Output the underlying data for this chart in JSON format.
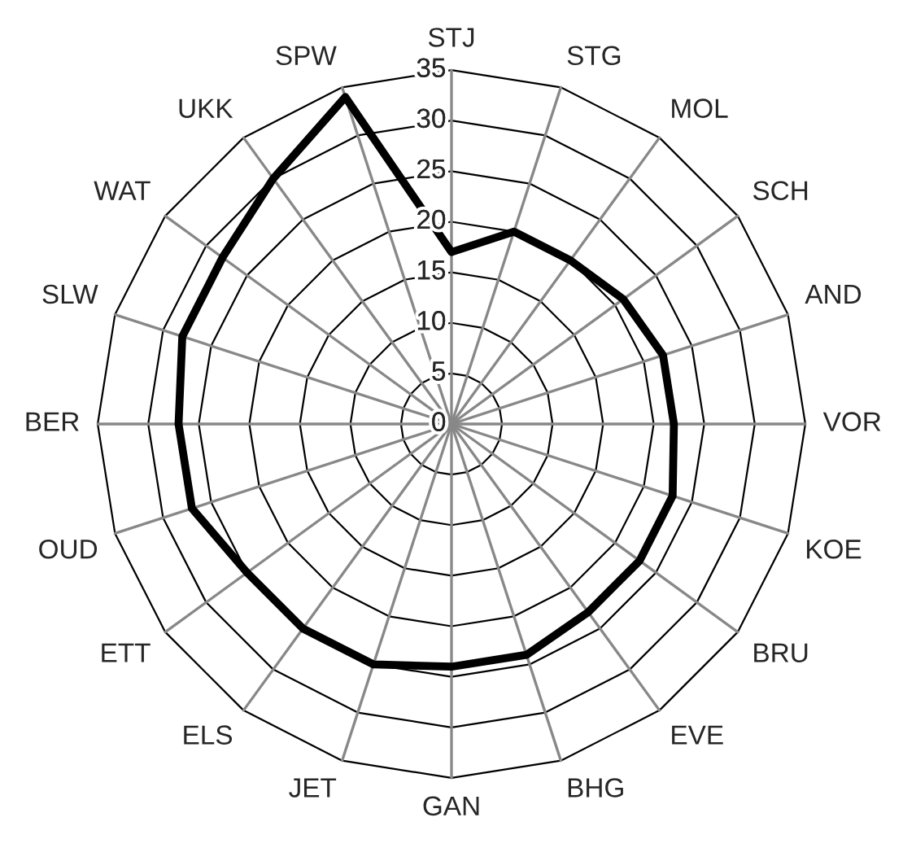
{
  "chart_data": {
    "type": "radar",
    "categories": [
      "STJ",
      "STG",
      "MOL",
      "SCH",
      "AND",
      "VOR",
      "KOE",
      "BRU",
      "EVE",
      "BHG",
      "GAN",
      "JET",
      "ELS",
      "ETT",
      "OUD",
      "BER",
      "SLW",
      "WAT",
      "UKK",
      "SPW"
    ],
    "series": [
      {
        "color": "#000000",
        "values": [
          17,
          20,
          20,
          21,
          22,
          22,
          23,
          23,
          23,
          24,
          24,
          25,
          25,
          25,
          27,
          27,
          28,
          28,
          30,
          34
        ]
      }
    ],
    "ylim": [
      0,
      35
    ],
    "yticks": [
      0,
      5,
      10,
      15,
      20,
      25,
      30,
      35
    ],
    "grid": true,
    "marker": "none",
    "line_style": "solid"
  }
}
